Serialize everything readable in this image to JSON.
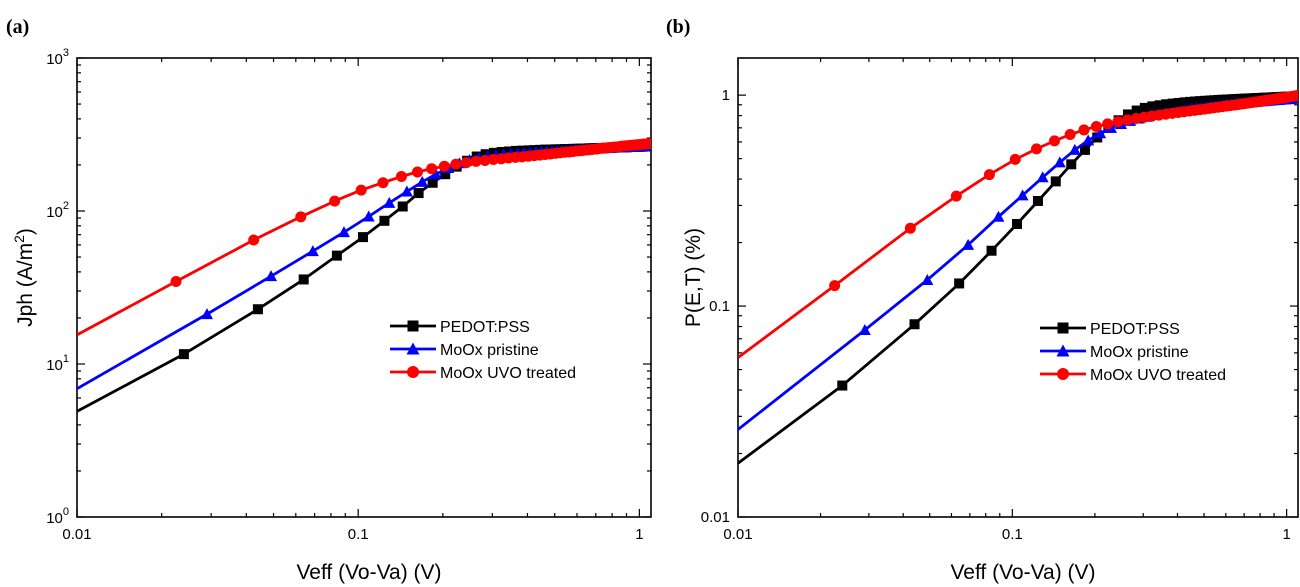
{
  "chart_data": [
    {
      "type": "line",
      "panel_label": "(a)",
      "xlabel": "Veff (Vo-Va) (V)",
      "ylabel_main": "Jph (A/m",
      "ylabel_sup": "2",
      "ylabel_end": ")",
      "xscale": "log",
      "yscale": "log",
      "xlim": [
        0.01,
        1.1
      ],
      "ylim": [
        1,
        1000
      ],
      "x_ticks": [
        {
          "value": 0.01,
          "label": "0.01"
        },
        {
          "value": 0.1,
          "label": "0.1"
        },
        {
          "value": 1,
          "label": "1"
        }
      ],
      "y_ticks": [
        {
          "value": 1,
          "base": "10",
          "exp": "0"
        },
        {
          "value": 10,
          "base": "10",
          "exp": "1"
        },
        {
          "value": 100,
          "base": "10",
          "exp": "2"
        },
        {
          "value": 1000,
          "base": "10",
          "exp": "3"
        }
      ],
      "legend_position": "center-right",
      "series": [
        {
          "name": "PEDOT:PSS",
          "color": "#000000",
          "marker": "square",
          "x": [
            0.01,
            0.024,
            0.044,
            0.064,
            0.084,
            0.104,
            0.124,
            0.144,
            0.164,
            0.184,
            0.204,
            0.224,
            0.244,
            0.264,
            0.284,
            0.304,
            0.324,
            0.344,
            0.364,
            0.384,
            0.404,
            0.424,
            0.444,
            0.464,
            0.484,
            0.504,
            0.524,
            0.544,
            0.564,
            0.584,
            0.604,
            0.624,
            0.644,
            0.664,
            0.684,
            0.704,
            0.724,
            0.744,
            0.764,
            0.784,
            0.804,
            0.824,
            0.844,
            0.864,
            0.884,
            0.904,
            0.924,
            0.944,
            0.964,
            0.984,
            1.004,
            1.024,
            1.044,
            1.064,
            1.084,
            1.1
          ],
          "y": [
            4.9,
            11.6,
            22.8,
            35.7,
            51.1,
            67.5,
            86.3,
            107,
            131,
            153,
            174,
            195,
            213,
            227,
            235,
            240,
            243,
            245,
            247,
            248,
            249,
            250,
            251,
            252,
            252,
            253,
            253,
            254,
            254,
            255,
            255,
            256,
            256,
            257,
            257,
            258,
            258,
            258,
            259,
            259,
            260,
            260,
            260,
            261,
            261,
            261,
            262,
            262,
            262,
            263,
            263,
            263,
            264,
            264,
            264,
            265
          ]
        },
        {
          "name": "MoOx pristine",
          "color": "#0000ff",
          "marker": "triangle",
          "x": [
            0.01,
            0.029,
            0.049,
            0.069,
            0.089,
            0.109,
            0.129,
            0.149,
            0.169,
            0.189,
            0.209,
            0.229,
            0.249,
            0.269,
            0.289,
            0.309,
            0.329,
            0.349,
            0.369,
            0.389,
            0.409,
            0.429,
            0.449,
            0.469,
            0.489,
            0.509,
            0.529,
            0.549,
            0.569,
            0.589,
            0.609,
            0.629,
            0.649,
            0.669,
            0.689,
            0.709,
            0.729,
            0.749,
            0.769,
            0.789,
            0.809,
            0.829,
            0.849,
            0.869,
            0.889,
            0.909,
            0.929,
            0.949,
            0.969,
            0.989,
            1.009,
            1.029,
            1.049,
            1.069,
            1.089,
            1.1
          ],
          "y": [
            6.9,
            21.2,
            37.5,
            54.7,
            72.7,
            92.1,
            113,
            134,
            155,
            174,
            191,
            205,
            215,
            222,
            227,
            231,
            234,
            236,
            238,
            240,
            241,
            243,
            244,
            245,
            246,
            247,
            248,
            249,
            250,
            251,
            252,
            253,
            253,
            254,
            255,
            256,
            256,
            257,
            258,
            258,
            259,
            260,
            260,
            261,
            261,
            262,
            262,
            263,
            263,
            264,
            264,
            265,
            265,
            266,
            266,
            267
          ]
        },
        {
          "name": "MoOx UVO treated",
          "color": "#ff0000",
          "marker": "circle",
          "x": [
            0.01,
            0.0225,
            0.0425,
            0.0625,
            0.0825,
            0.1025,
            0.1225,
            0.1425,
            0.1625,
            0.1825,
            0.2025,
            0.2225,
            0.2425,
            0.2625,
            0.2825,
            0.3025,
            0.3225,
            0.3425,
            0.3625,
            0.3825,
            0.4025,
            0.4225,
            0.4425,
            0.4625,
            0.4825,
            0.5025,
            0.5225,
            0.5425,
            0.5625,
            0.5825,
            0.6025,
            0.6225,
            0.6425,
            0.6625,
            0.6825,
            0.7025,
            0.7225,
            0.7425,
            0.7625,
            0.7825,
            0.8025,
            0.8225,
            0.8425,
            0.8625,
            0.8825,
            0.9025,
            0.9225,
            0.9425,
            0.9625,
            0.9825,
            1.0025,
            1.0225,
            1.0425,
            1.0625,
            1.0825,
            1.1
          ],
          "y": [
            15.5,
            34.6,
            64.6,
            91.6,
            116,
            137,
            153,
            168,
            180,
            189,
            196,
            202,
            207,
            211,
            214,
            217,
            219,
            222,
            224,
            226,
            228,
            230,
            232,
            234,
            236,
            238,
            240,
            242,
            243,
            245,
            247,
            248,
            250,
            251,
            253,
            254,
            256,
            257,
            258,
            260,
            261,
            262,
            263,
            265,
            266,
            267,
            268,
            269,
            270,
            271,
            272,
            273,
            274,
            275,
            276,
            277
          ]
        }
      ]
    },
    {
      "type": "line",
      "panel_label": "(b)",
      "xlabel": "Veff (Vo-Va) (V)",
      "ylabel_main": "P(E,T) (%)",
      "ylabel_sup": "",
      "ylabel_end": "",
      "xscale": "log",
      "yscale": "log",
      "xlim": [
        0.01,
        1.1
      ],
      "ylim": [
        0.01,
        1.5
      ],
      "x_ticks": [
        {
          "value": 0.01,
          "label": "0.01"
        },
        {
          "value": 0.1,
          "label": "0.1"
        },
        {
          "value": 1,
          "label": "1"
        }
      ],
      "y_ticks": [
        {
          "value": 0.01,
          "label": "0.01"
        },
        {
          "value": 0.1,
          "label": "0.1"
        },
        {
          "value": 1,
          "label": "1"
        }
      ],
      "legend_position": "center-right",
      "series": [
        {
          "name": "PEDOT:PSS",
          "color": "#000000",
          "marker": "square",
          "x": [
            0.01,
            0.024,
            0.044,
            0.064,
            0.084,
            0.104,
            0.124,
            0.144,
            0.164,
            0.184,
            0.204,
            0.224,
            0.244,
            0.264,
            0.284,
            0.304,
            0.324,
            0.344,
            0.364,
            0.384,
            0.404,
            0.424,
            0.444,
            0.464,
            0.484,
            0.504,
            0.524,
            0.544,
            0.564,
            0.584,
            0.604,
            0.624,
            0.644,
            0.664,
            0.684,
            0.704,
            0.724,
            0.744,
            0.764,
            0.784,
            0.804,
            0.824,
            0.844,
            0.864,
            0.884,
            0.904,
            0.924,
            0.944,
            0.964,
            0.984,
            1.004,
            1.024,
            1.044,
            1.064,
            1.084,
            1.1
          ],
          "y": [
            0.018,
            0.042,
            0.082,
            0.128,
            0.183,
            0.245,
            0.315,
            0.39,
            0.47,
            0.55,
            0.63,
            0.7,
            0.76,
            0.81,
            0.845,
            0.87,
            0.885,
            0.895,
            0.905,
            0.912,
            0.918,
            0.924,
            0.929,
            0.933,
            0.937,
            0.94,
            0.943,
            0.946,
            0.949,
            0.951,
            0.953,
            0.955,
            0.957,
            0.959,
            0.961,
            0.963,
            0.964,
            0.966,
            0.967,
            0.969,
            0.97,
            0.972,
            0.973,
            0.974,
            0.976,
            0.977,
            0.978,
            0.979,
            0.981,
            0.982,
            0.983,
            0.984,
            0.985,
            0.986,
            0.987,
            0.988
          ]
        },
        {
          "name": "MoOx pristine",
          "color": "#0000ff",
          "marker": "triangle",
          "x": [
            0.01,
            0.029,
            0.049,
            0.069,
            0.089,
            0.109,
            0.129,
            0.149,
            0.169,
            0.189,
            0.209,
            0.229,
            0.249,
            0.269,
            0.289,
            0.309,
            0.329,
            0.349,
            0.369,
            0.389,
            0.409,
            0.429,
            0.449,
            0.469,
            0.489,
            0.509,
            0.529,
            0.549,
            0.569,
            0.589,
            0.609,
            0.629,
            0.649,
            0.669,
            0.689,
            0.709,
            0.729,
            0.749,
            0.769,
            0.789,
            0.809,
            0.829,
            0.849,
            0.869,
            0.889,
            0.909,
            0.929,
            0.949,
            0.969,
            0.989,
            1.009,
            1.029,
            1.049,
            1.069,
            1.089,
            1.1
          ],
          "y": [
            0.026,
            0.077,
            0.133,
            0.195,
            0.265,
            0.335,
            0.408,
            0.48,
            0.55,
            0.61,
            0.66,
            0.7,
            0.73,
            0.755,
            0.775,
            0.79,
            0.805,
            0.815,
            0.825,
            0.835,
            0.843,
            0.851,
            0.858,
            0.865,
            0.871,
            0.877,
            0.882,
            0.887,
            0.892,
            0.897,
            0.901,
            0.905,
            0.909,
            0.913,
            0.917,
            0.92,
            0.923,
            0.926,
            0.929,
            0.932,
            0.935,
            0.937,
            0.94,
            0.942,
            0.944,
            0.947,
            0.949,
            0.951,
            0.953,
            0.955,
            0.957,
            0.959,
            0.961,
            0.963,
            0.965,
            0.967
          ]
        },
        {
          "name": "MoOx UVO treated",
          "color": "#ff0000",
          "marker": "circle",
          "x": [
            0.01,
            0.0225,
            0.0425,
            0.0625,
            0.0825,
            0.1025,
            0.1225,
            0.1425,
            0.1625,
            0.1825,
            0.2025,
            0.2225,
            0.2425,
            0.2625,
            0.2825,
            0.3025,
            0.3225,
            0.3425,
            0.3625,
            0.3825,
            0.4025,
            0.4225,
            0.4425,
            0.4625,
            0.4825,
            0.5025,
            0.5225,
            0.5425,
            0.5625,
            0.5825,
            0.6025,
            0.6225,
            0.6425,
            0.6625,
            0.6825,
            0.7025,
            0.7225,
            0.7425,
            0.7625,
            0.7825,
            0.8025,
            0.8225,
            0.8425,
            0.8625,
            0.8825,
            0.9025,
            0.9225,
            0.9425,
            0.9625,
            0.9825,
            1.0025,
            1.0225,
            1.0425,
            1.0625,
            1.0825,
            1.1
          ],
          "y": [
            0.057,
            0.125,
            0.234,
            0.332,
            0.42,
            0.496,
            0.556,
            0.607,
            0.651,
            0.684,
            0.71,
            0.731,
            0.748,
            0.763,
            0.775,
            0.786,
            0.795,
            0.804,
            0.812,
            0.82,
            0.827,
            0.834,
            0.841,
            0.847,
            0.853,
            0.859,
            0.865,
            0.871,
            0.876,
            0.882,
            0.887,
            0.892,
            0.897,
            0.902,
            0.907,
            0.912,
            0.917,
            0.922,
            0.926,
            0.931,
            0.935,
            0.94,
            0.944,
            0.948,
            0.953,
            0.957,
            0.961,
            0.965,
            0.969,
            0.973,
            0.977,
            0.981,
            0.985,
            0.989,
            0.993,
            0.997
          ]
        }
      ]
    }
  ]
}
